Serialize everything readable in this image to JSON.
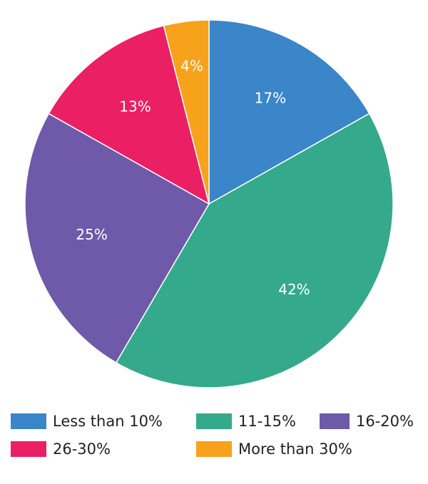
{
  "chart_data": {
    "type": "pie",
    "categories": [
      "Less than 10%",
      "11-15%",
      "16-20%",
      "26-30%",
      "More than 30%"
    ],
    "values": [
      17,
      42,
      25,
      13,
      4
    ],
    "value_labels": [
      "17%",
      "42%",
      "25%",
      "13%",
      "4%"
    ],
    "colors": [
      "#3a86c8",
      "#35a98c",
      "#6e5aa8",
      "#eb1f64",
      "#f7a21b"
    ],
    "legend": "bottom"
  }
}
